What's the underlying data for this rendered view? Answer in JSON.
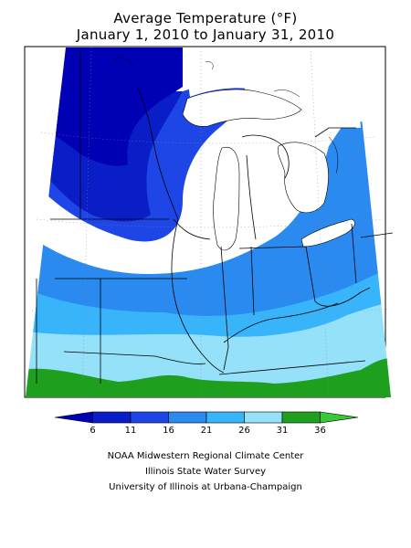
{
  "title": {
    "line1": "Average Temperature (°F)",
    "line2": "January 1, 2010 to January 31, 2010"
  },
  "legend": {
    "ticks": [
      "6",
      "11",
      "16",
      "21",
      "26",
      "31",
      "36"
    ],
    "colors": [
      "#0000b4",
      "#0a1ec8",
      "#1e46e6",
      "#2a8af0",
      "#38b4fa",
      "#96e1fa",
      "#1ea01e",
      "#38c838"
    ]
  },
  "map": {
    "band_colors": {
      "lt6": "#0000b4",
      "6_11": "#0a1ec8",
      "11_16": "#1e46e6",
      "16_21": "#2a8af0",
      "21_26": "#38b4fa",
      "26_31": "#96e1fa",
      "31_36": "#1ea01e"
    }
  },
  "credits": {
    "line1": "NOAA Midwestern Regional Climate Center",
    "line2": "Illinois State Water Survey",
    "line3": "University of Illinois at Urbana-Champaign"
  }
}
